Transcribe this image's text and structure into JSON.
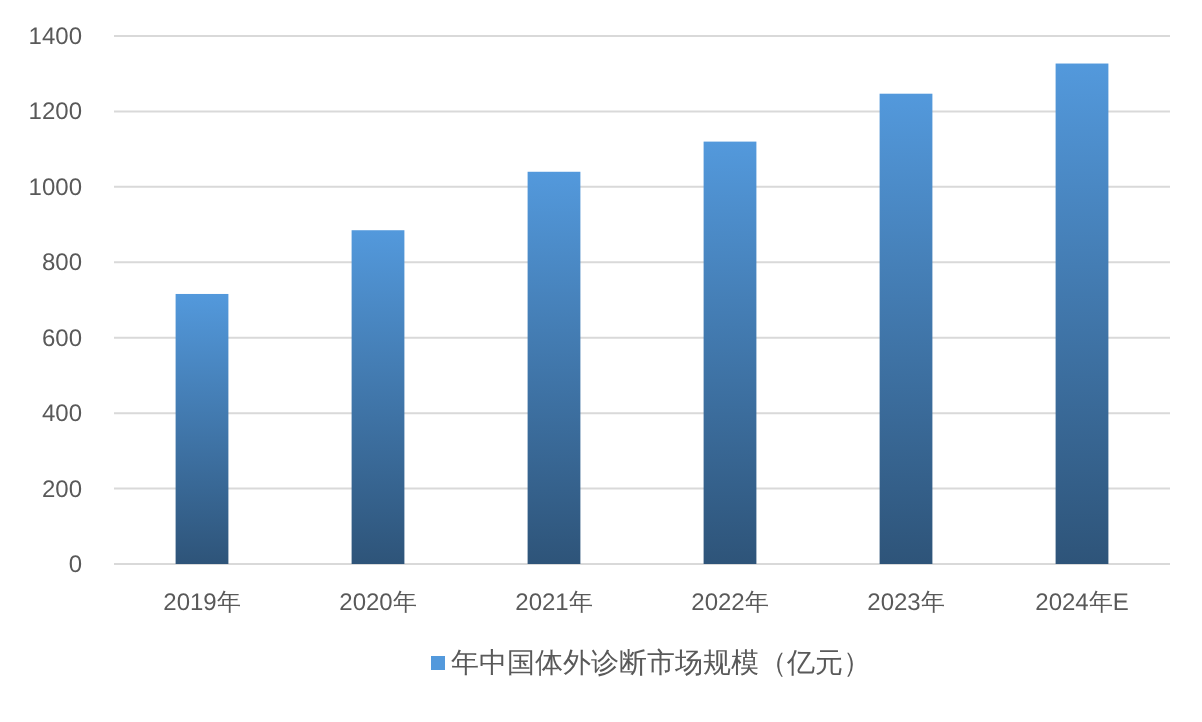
{
  "chart_data": {
    "type": "bar",
    "categories": [
      "2019年",
      "2020年",
      "2021年",
      "2022年",
      "2023年",
      "2024年E"
    ],
    "series": [
      {
        "name": "年中国体外诊断市场规模（亿元）",
        "color": "#5399dc",
        "values": [
          716,
          885,
          1040,
          1120,
          1247,
          1327
        ]
      }
    ],
    "ylim": [
      0,
      1400
    ],
    "yticks": [
      0,
      200,
      400,
      600,
      800,
      1000,
      1200,
      1400
    ],
    "grid": "y",
    "legend": "bottom"
  }
}
